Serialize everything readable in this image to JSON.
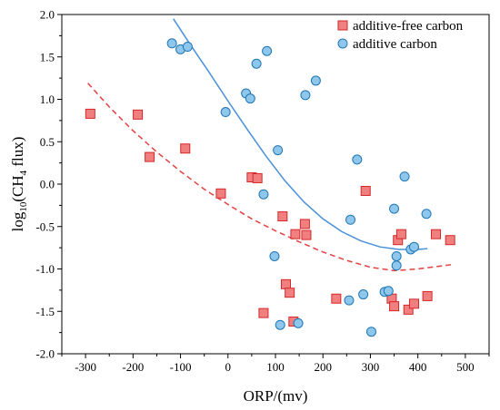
{
  "chart_data": {
    "type": "scatter",
    "title": "",
    "xlabel": "ORP/(mv)",
    "ylabel": {
      "prefix": "log",
      "sub1": "10",
      "mid": "(CH",
      "sub2": "4",
      "suffix": " flux)"
    },
    "xlim": [
      -350,
      550
    ],
    "ylim": [
      -2.0,
      2.0
    ],
    "xticks": [
      -300,
      -200,
      -100,
      0,
      100,
      200,
      300,
      400,
      500
    ],
    "yticks": [
      -2.0,
      -1.5,
      -1.0,
      -0.5,
      0.0,
      0.5,
      1.0,
      1.5,
      2.0
    ],
    "grid": false,
    "legend_position": "top-right",
    "series": [
      {
        "name": "additive-free carbon",
        "marker": "square",
        "fill": "#f08080",
        "stroke": "#d62728",
        "points": [
          [
            -290,
            0.83
          ],
          [
            -190,
            0.82
          ],
          [
            -165,
            0.32
          ],
          [
            -90,
            0.42
          ],
          [
            -15,
            -0.11
          ],
          [
            50,
            0.08
          ],
          [
            62,
            0.07
          ],
          [
            75,
            -1.52
          ],
          [
            115,
            -0.38
          ],
          [
            122,
            -1.18
          ],
          [
            130,
            -1.28
          ],
          [
            138,
            -1.62
          ],
          [
            142,
            -0.59
          ],
          [
            162,
            -0.47
          ],
          [
            165,
            -0.6
          ],
          [
            228,
            -1.35
          ],
          [
            290,
            -0.08
          ],
          [
            345,
            -1.35
          ],
          [
            350,
            -1.44
          ],
          [
            358,
            -0.66
          ],
          [
            365,
            -0.59
          ],
          [
            380,
            -1.48
          ],
          [
            392,
            -1.41
          ],
          [
            420,
            -1.32
          ],
          [
            438,
            -0.59
          ],
          [
            468,
            -0.66
          ]
        ]
      },
      {
        "name": "additive carbon",
        "marker": "circle",
        "fill": "#8ec6ec",
        "stroke": "#1f77b4",
        "points": [
          [
            -118,
            1.66
          ],
          [
            -100,
            1.59
          ],
          [
            -85,
            1.62
          ],
          [
            -5,
            0.85
          ],
          [
            38,
            1.07
          ],
          [
            47,
            1.01
          ],
          [
            60,
            1.42
          ],
          [
            75,
            -0.12
          ],
          [
            82,
            1.57
          ],
          [
            98,
            -0.85
          ],
          [
            105,
            0.4
          ],
          [
            110,
            -1.66
          ],
          [
            148,
            -1.64
          ],
          [
            163,
            1.05
          ],
          [
            185,
            1.22
          ],
          [
            255,
            -1.37
          ],
          [
            258,
            -0.42
          ],
          [
            272,
            0.29
          ],
          [
            285,
            -1.3
          ],
          [
            302,
            -1.74
          ],
          [
            330,
            -1.27
          ],
          [
            338,
            -1.26
          ],
          [
            350,
            -0.29
          ],
          [
            355,
            -0.85
          ],
          [
            355,
            -0.96
          ],
          [
            372,
            0.09
          ],
          [
            385,
            -0.77
          ],
          [
            392,
            -0.74
          ],
          [
            418,
            -0.35
          ]
        ]
      }
    ],
    "fit_lines": [
      {
        "series": "additive carbon",
        "style": "solid",
        "color": "#4a90d9",
        "x": [
          -115,
          -80,
          -40,
          0,
          40,
          80,
          120,
          160,
          200,
          240,
          280,
          320,
          360,
          400,
          420
        ],
        "y": [
          1.95,
          1.65,
          1.32,
          0.98,
          0.65,
          0.33,
          0.04,
          -0.21,
          -0.41,
          -0.56,
          -0.67,
          -0.74,
          -0.77,
          -0.77,
          -0.76
        ]
      },
      {
        "series": "additive-free carbon",
        "style": "dashed",
        "color": "#e04040",
        "x": [
          -295,
          -250,
          -200,
          -150,
          -100,
          -50,
          0,
          50,
          100,
          150,
          200,
          250,
          300,
          350,
          400,
          470
        ],
        "y": [
          1.19,
          0.91,
          0.63,
          0.38,
          0.15,
          -0.06,
          -0.24,
          -0.41,
          -0.55,
          -0.68,
          -0.8,
          -0.9,
          -0.98,
          -1.02,
          -1.0,
          -0.95
        ]
      }
    ]
  }
}
